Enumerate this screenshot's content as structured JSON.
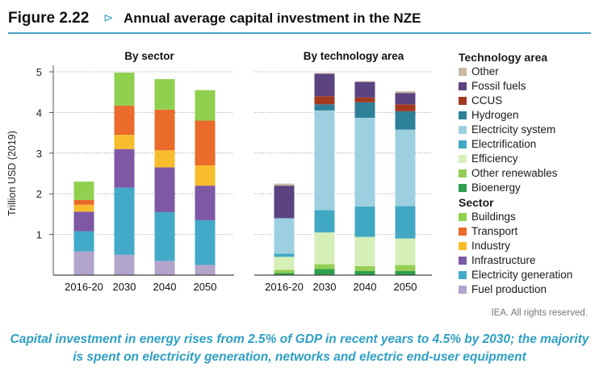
{
  "figure": {
    "number": "Figure 2.22",
    "arrow": "⊳",
    "title": "Annual average capital investment in the NZE",
    "rights": "IEA. All rights reserved.",
    "caption": "Capital investment in energy rises from 2.5% of GDP in recent years to 4.5% by 2030; the majority is spent on electricity generation, networks and electric end-user equipment"
  },
  "legend": {
    "tech_heading": "Technology area",
    "tech_items": [
      {
        "label": "Other",
        "color": "#c9b8a4"
      },
      {
        "label": "Fossil fuels",
        "color": "#5b4280"
      },
      {
        "label": "CCUS",
        "color": "#a2391f"
      },
      {
        "label": "Hydrogen",
        "color": "#2e7f98"
      },
      {
        "label": "Electricity system",
        "color": "#9cd0e1"
      },
      {
        "label": "Electrification",
        "color": "#41a8c4"
      },
      {
        "label": "Efficiency",
        "color": "#d6efb9"
      },
      {
        "label": "Other renewables",
        "color": "#93cf55"
      },
      {
        "label": "Bioenergy",
        "color": "#2e9e4e"
      }
    ],
    "sector_heading": "Sector",
    "sector_items": [
      {
        "label": "Buildings",
        "color": "#8fd14f"
      },
      {
        "label": "Transport",
        "color": "#ea6b2a"
      },
      {
        "label": "Industry",
        "color": "#f8bd2c"
      },
      {
        "label": "Infrastructure",
        "color": "#7d58a5"
      },
      {
        "label": "Electricity generation",
        "color": "#42aac8"
      },
      {
        "label": "Fuel production",
        "color": "#b3a4cc"
      }
    ]
  },
  "chart_data": [
    {
      "type": "bar",
      "stacked": true,
      "title": "By sector",
      "ylabel": "Trillion USD (2019)",
      "xlabel": "",
      "ylim": [
        0,
        5
      ],
      "yticks": [
        "1",
        "2",
        "3",
        "4",
        "5"
      ],
      "grid": "dotted horizontal",
      "categories": [
        "2016-20",
        "2030",
        "2040",
        "2050"
      ],
      "series": [
        {
          "name": "Fuel production",
          "color": "#b3a4cc",
          "values": [
            0.58,
            0.5,
            0.35,
            0.25
          ]
        },
        {
          "name": "Electricity generation",
          "color": "#42aac8",
          "values": [
            0.5,
            1.65,
            1.2,
            1.1
          ]
        },
        {
          "name": "Infrastructure",
          "color": "#7d58a5",
          "values": [
            0.48,
            0.95,
            1.1,
            0.85
          ]
        },
        {
          "name": "Industry",
          "color": "#f8bd2c",
          "values": [
            0.17,
            0.35,
            0.42,
            0.5
          ]
        },
        {
          "name": "Transport",
          "color": "#ea6b2a",
          "values": [
            0.12,
            0.72,
            1.0,
            1.1
          ]
        },
        {
          "name": "Buildings",
          "color": "#8fd14f",
          "values": [
            0.45,
            0.81,
            0.75,
            0.75
          ]
        }
      ]
    },
    {
      "type": "bar",
      "stacked": true,
      "title": "By technology area",
      "ylabel": "",
      "xlabel": "",
      "ylim": [
        0,
        5
      ],
      "grid": "dotted horizontal",
      "categories": [
        "2016-20",
        "2030",
        "2040",
        "2050"
      ],
      "series": [
        {
          "name": "Bioenergy",
          "color": "#2e9e4e",
          "values": [
            0.05,
            0.15,
            0.1,
            0.1
          ]
        },
        {
          "name": "Other renewables",
          "color": "#93cf55",
          "values": [
            0.08,
            0.12,
            0.12,
            0.15
          ]
        },
        {
          "name": "Efficiency",
          "color": "#d6efb9",
          "values": [
            0.32,
            0.78,
            0.72,
            0.65
          ]
        },
        {
          "name": "Electrification",
          "color": "#41a8c4",
          "values": [
            0.08,
            0.55,
            0.75,
            0.8
          ]
        },
        {
          "name": "Electricity system",
          "color": "#9cd0e1",
          "values": [
            0.87,
            2.45,
            2.18,
            1.88
          ]
        },
        {
          "name": "Hydrogen",
          "color": "#2e7f98",
          "values": [
            0.0,
            0.15,
            0.38,
            0.45
          ]
        },
        {
          "name": "CCUS",
          "color": "#a2391f",
          "values": [
            0.0,
            0.2,
            0.12,
            0.17
          ]
        },
        {
          "name": "Fossil fuels",
          "color": "#5b4280",
          "values": [
            0.8,
            0.55,
            0.38,
            0.28
          ]
        },
        {
          "name": "Other",
          "color": "#c9b8a4",
          "values": [
            0.05,
            0.02,
            0.02,
            0.04
          ]
        }
      ]
    }
  ]
}
